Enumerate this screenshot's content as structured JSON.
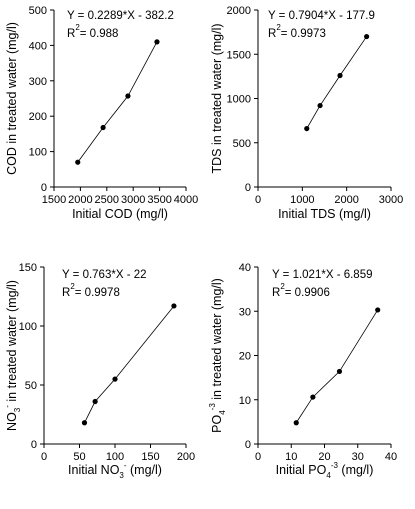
{
  "chart_data": [
    {
      "type": "line",
      "x": [
        1950,
        2430,
        2900,
        3450
      ],
      "y": [
        70,
        168,
        257,
        410
      ],
      "xlim": [
        1500,
        4000
      ],
      "ylim": [
        0,
        500
      ],
      "xticks": [
        1500,
        2000,
        2500,
        3000,
        3500,
        4000
      ],
      "yticks": [
        0,
        100,
        200,
        300,
        400,
        500
      ],
      "xlabel": "Initial COD (mg/l)",
      "ylabel": "COD in treated water (mg/l)",
      "equation": "Y = 0.2289*X - 382.2",
      "r2_value": "= 0.988",
      "r2_label": "R",
      "r2_sup": "2",
      "grid": false,
      "marker": "dot"
    },
    {
      "type": "line",
      "x": [
        1100,
        1400,
        1850,
        2450
      ],
      "y": [
        660,
        920,
        1260,
        1700
      ],
      "xlim": [
        0,
        3000
      ],
      "ylim": [
        0,
        2000
      ],
      "xticks": [
        0,
        1000,
        2000,
        3000
      ],
      "yticks": [
        0,
        500,
        1000,
        1500,
        2000
      ],
      "xlabel": "Initial TDS (mg/l)",
      "ylabel": "TDS in treated water (mg/l)",
      "equation": "Y = 0.7904*X - 177.9",
      "r2_value": "= 0.9973",
      "r2_label": "R",
      "r2_sup": "2",
      "grid": false,
      "marker": "dot"
    },
    {
      "type": "line",
      "x": [
        57,
        72,
        100,
        183
      ],
      "y": [
        18,
        36,
        55,
        117
      ],
      "xlim": [
        0,
        200
      ],
      "ylim": [
        0,
        150
      ],
      "xticks": [
        0,
        50,
        100,
        150,
        200
      ],
      "yticks": [
        0,
        50,
        100,
        150
      ],
      "xlabel": "Initial NO3- (mg/l)",
      "ylabel": "NO3- in treated water (mg/l)",
      "xlabel_main": "Initial NO",
      "xlabel_sub": "3",
      "xlabel_sup": "-",
      "xlabel_tail": " (mg/l)",
      "ylabel_main": "NO",
      "ylabel_sub": "3",
      "ylabel_sup": "-",
      "ylabel_tail": " in treated water (mg/l)",
      "equation": "Y = 0.763*X - 22",
      "r2_value": "= 0.9978",
      "r2_label": "R",
      "r2_sup": "2",
      "grid": false,
      "marker": "dot"
    },
    {
      "type": "line",
      "x": [
        11.5,
        16.5,
        24.5,
        36
      ],
      "y": [
        4.8,
        10.6,
        16.4,
        30.3
      ],
      "xlim": [
        0,
        40
      ],
      "ylim": [
        0,
        40
      ],
      "xticks": [
        0,
        10,
        20,
        30,
        40
      ],
      "yticks": [
        0,
        10,
        20,
        30,
        40
      ],
      "xlabel": "Initial PO4-3 (mg/l)",
      "ylabel": "PO4-3 in treated water (mg/l)",
      "xlabel_main": "Initial PO",
      "xlabel_sub": "4",
      "xlabel_sup": "-3",
      "xlabel_tail": " (mg/l)",
      "ylabel_main": "PO",
      "ylabel_sub": "4",
      "ylabel_sup": "-3",
      "ylabel_tail": " in treated water (mg/l)",
      "equation": "Y = 1.021*X - 6.859",
      "r2_value": "= 0.9906",
      "r2_label": "R",
      "r2_sup": "2",
      "grid": false,
      "marker": "dot"
    }
  ]
}
